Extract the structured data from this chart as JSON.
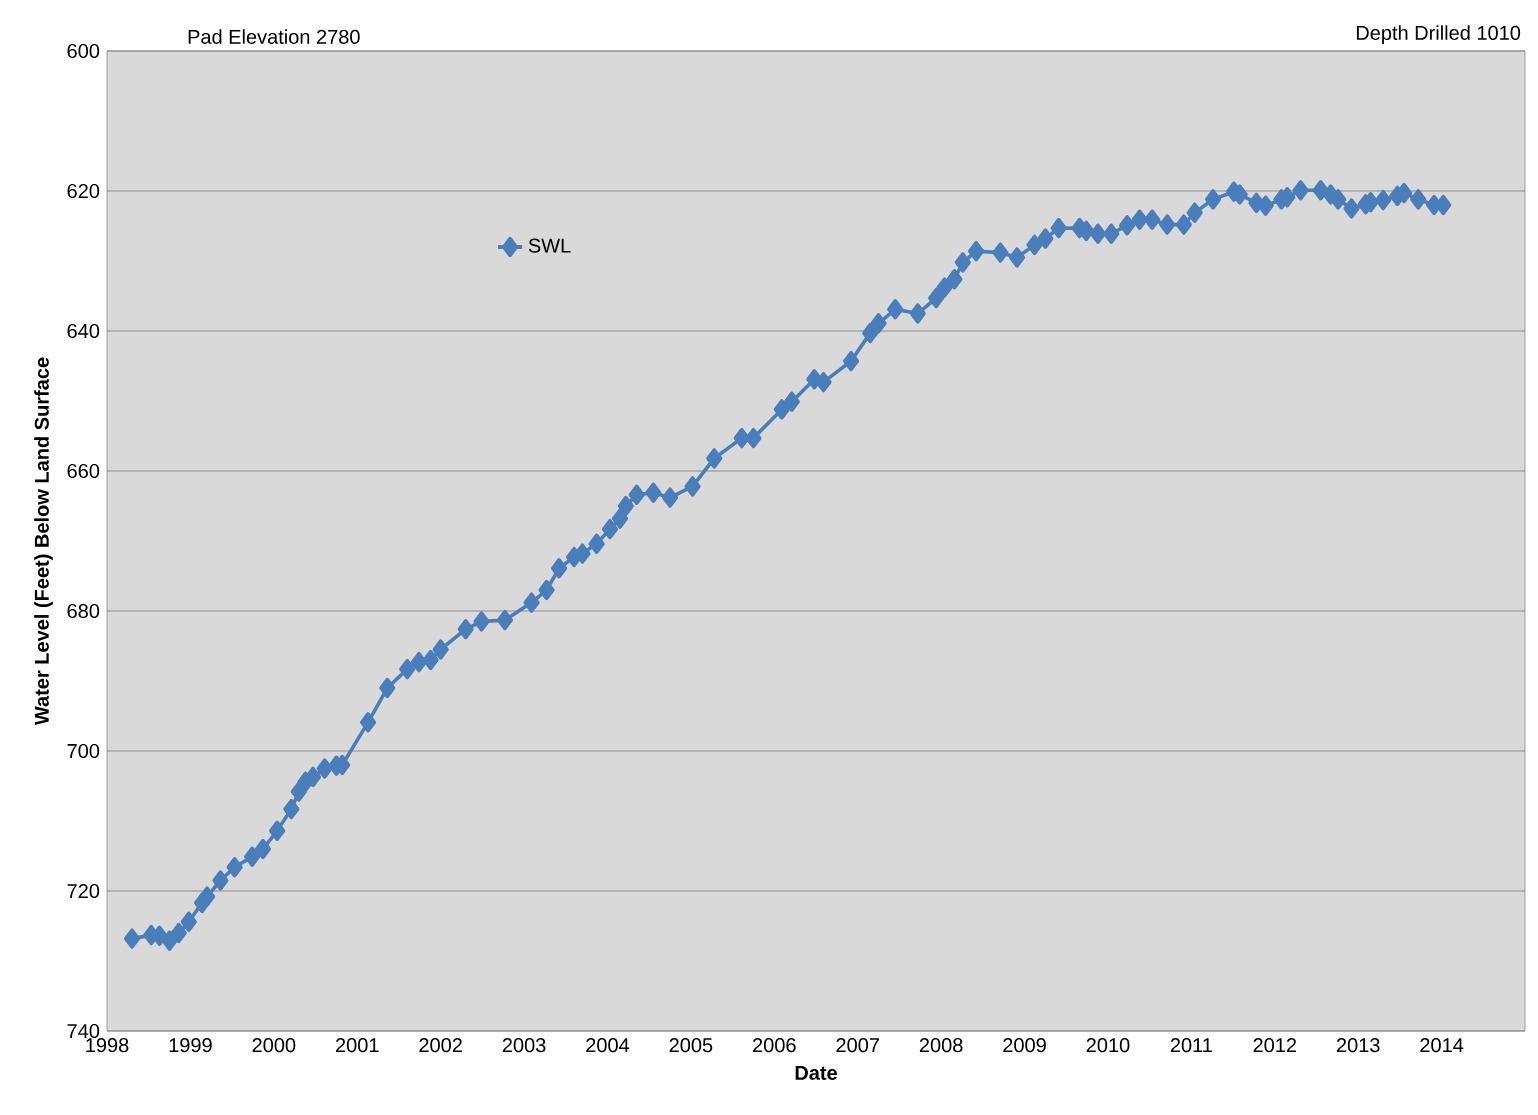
{
  "chart_data": {
    "type": "line",
    "xlabel": "Date",
    "ylabel": "Water Level (Feet) Below Land Surface",
    "annotations": [
      "Pad Elevation 2780",
      "Depth Drilled 1010"
    ],
    "x": [
      1998.3,
      1998.53,
      1998.63,
      1998.75,
      1998.86,
      1998.98,
      1999.14,
      1999.2,
      1999.36,
      1999.53,
      1999.74,
      1999.87,
      2000.04,
      2000.21,
      2000.3,
      2000.38,
      2000.47,
      2000.61,
      2000.75,
      2000.82,
      2001.13,
      2001.36,
      2001.6,
      2001.74,
      2001.88,
      2002.0,
      2002.3,
      2002.49,
      2002.77,
      2003.09,
      2003.27,
      2003.42,
      2003.6,
      2003.7,
      2003.87,
      2004.03,
      2004.15,
      2004.22,
      2004.35,
      2004.55,
      2004.75,
      2005.02,
      2005.28,
      2005.61,
      2005.75,
      2006.09,
      2006.21,
      2006.48,
      2006.59,
      2006.92,
      2007.15,
      2007.25,
      2007.45,
      2007.72,
      2007.94,
      2008.04,
      2008.16,
      2008.26,
      2008.42,
      2008.71,
      2008.91,
      2009.12,
      2009.25,
      2009.41,
      2009.66,
      2009.74,
      2009.88,
      2010.04,
      2010.23,
      2010.38,
      2010.53,
      2010.71,
      2010.91,
      2011.04,
      2011.26,
      2011.51,
      2011.58,
      2011.78,
      2011.89,
      2012.08,
      2012.15,
      2012.31,
      2012.55,
      2012.67,
      2012.76,
      2012.92,
      2013.09,
      2013.15,
      2013.3,
      2013.47,
      2013.55,
      2013.72,
      2013.91,
      2014.02
    ],
    "series": [
      {
        "name": "SWL",
        "color": "#4a7ebb",
        "values": [
          726.8,
          726.3,
          726.4,
          727.1,
          726.0,
          724.4,
          721.7,
          720.8,
          718.5,
          716.6,
          715.1,
          714.0,
          711.4,
          708.3,
          705.8,
          704.4,
          703.7,
          702.5,
          702.1,
          702.0,
          695.9,
          691.0,
          688.3,
          687.3,
          687.0,
          685.5,
          682.6,
          681.5,
          681.3,
          678.8,
          677.0,
          673.9,
          672.3,
          671.8,
          670.4,
          668.3,
          666.8,
          665.0,
          663.4,
          663.1,
          663.8,
          662.2,
          658.2,
          655.3,
          655.3,
          651.2,
          650.1,
          646.9,
          647.3,
          644.3,
          640.3,
          638.9,
          636.9,
          637.5,
          635.3,
          633.8,
          632.6,
          630.2,
          628.6,
          628.8,
          629.5,
          627.7,
          626.8,
          625.3,
          625.3,
          625.7,
          626.1,
          626.1,
          624.9,
          624.1,
          624.1,
          624.8,
          624.8,
          623.1,
          621.2,
          620.1,
          620.5,
          621.7,
          622.1,
          621.2,
          620.9,
          619.9,
          619.9,
          620.5,
          621.2,
          622.5,
          621.9,
          621.6,
          621.3,
          620.7,
          620.3,
          621.2,
          622.0,
          622.0
        ]
      }
    ],
    "xlim": [
      1998,
      2015
    ],
    "xticks": [
      1998,
      1999,
      2000,
      2001,
      2002,
      2003,
      2004,
      2005,
      2006,
      2007,
      2008,
      2009,
      2010,
      2011,
      2012,
      2013,
      2014
    ],
    "ylim": [
      740,
      600
    ],
    "yticks": [
      600,
      620,
      640,
      660,
      680,
      700,
      720,
      740
    ],
    "grid": "y",
    "legend": "top left",
    "marker": "diamond",
    "line_style": "solid"
  }
}
